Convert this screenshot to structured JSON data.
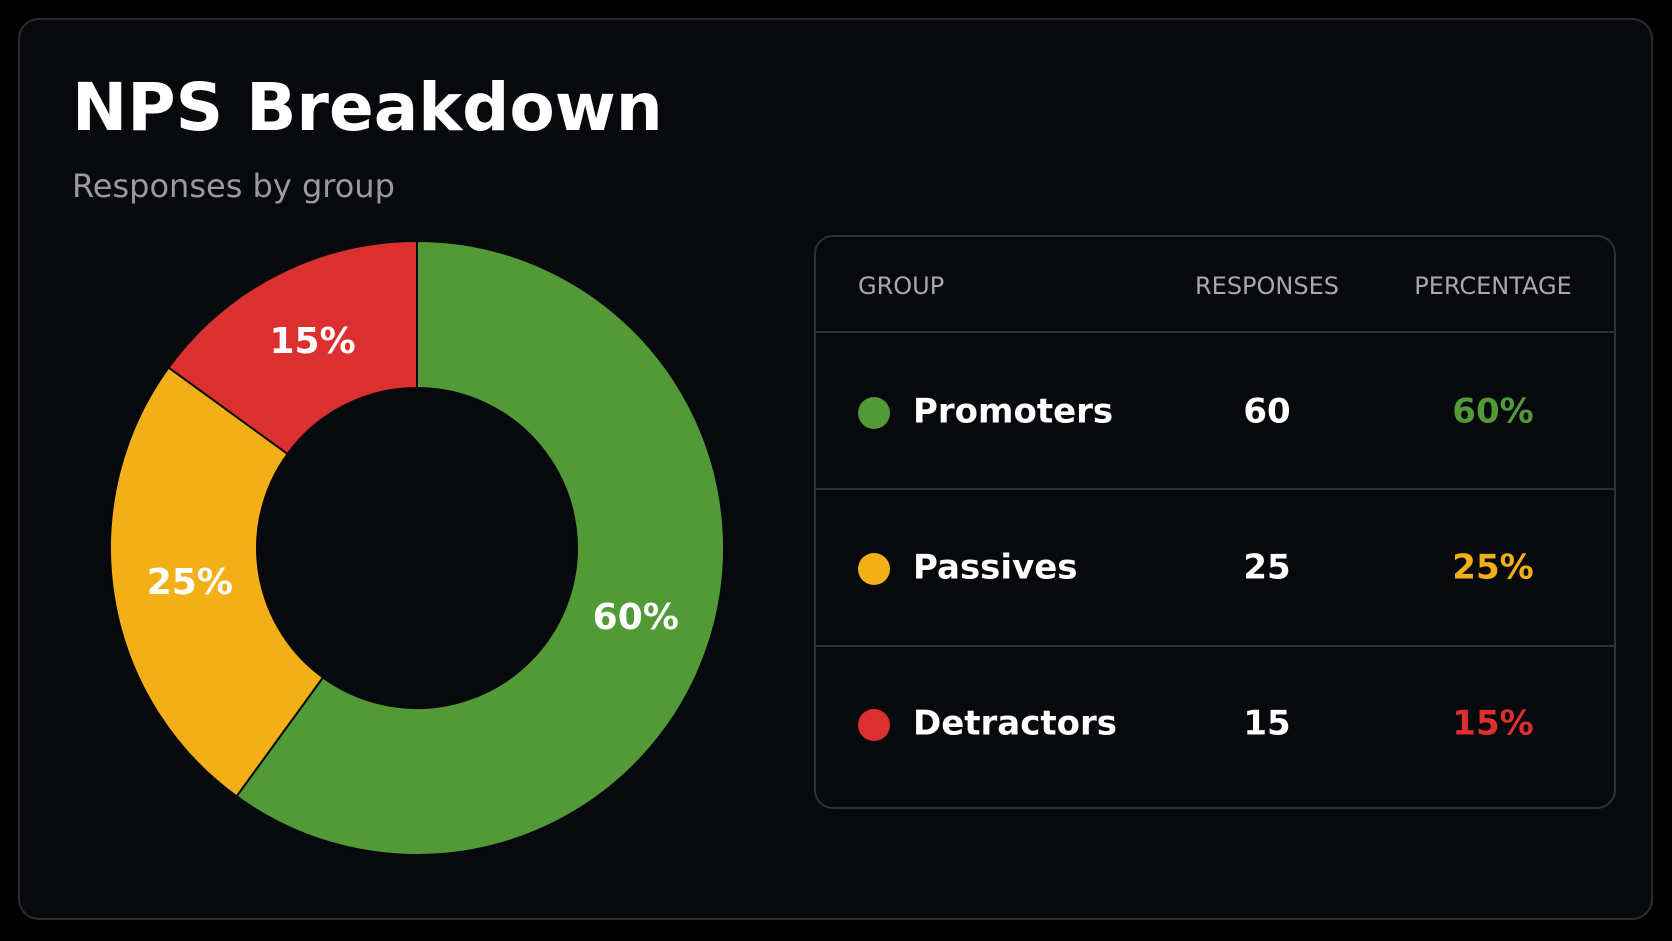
{
  "chart_data": {
    "type": "donut",
    "title": "NPS Breakdown",
    "subtitle": "Responses by group",
    "categories": [
      "Promoters",
      "Passives",
      "Detractors"
    ],
    "values": [
      60,
      25,
      15
    ],
    "value_labels": [
      "60%",
      "25%",
      "15%"
    ],
    "colors": [
      "#529a38",
      "#f3af17",
      "#dc3030"
    ]
  },
  "table": {
    "columns": [
      "GROUP",
      "RESPONSES",
      "PERCENTAGE"
    ],
    "rows": [
      [
        "Promoters",
        60,
        "60%"
      ],
      [
        "Passives",
        25,
        "25%"
      ],
      [
        "Detractors",
        15,
        "15%"
      ]
    ]
  }
}
